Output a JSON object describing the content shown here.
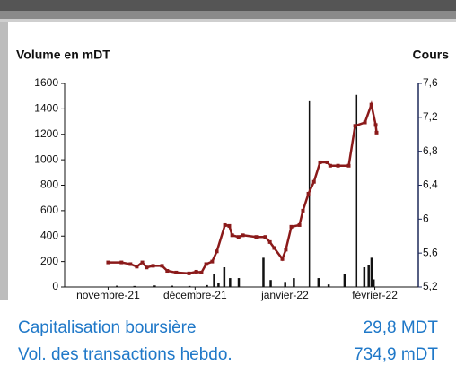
{
  "chart_data": {
    "type": "combo",
    "y_label": "Volume en mDT",
    "y2_label": "Cours",
    "xlim": [
      -15,
      107
    ],
    "xticks": [
      {
        "value": 0,
        "label": "novembre-21"
      },
      {
        "value": 30,
        "label": "décembre-21"
      },
      {
        "value": 61,
        "label": "janvier-22"
      },
      {
        "value": 92,
        "label": "février-22"
      }
    ],
    "ylim": [
      0,
      1600
    ],
    "yticks": [
      0,
      200,
      400,
      600,
      800,
      1000,
      1200,
      1400,
      1600
    ],
    "y2lim": [
      5.2,
      7.6
    ],
    "y2ticks": [
      {
        "value": 5.2,
        "label": "5,2"
      },
      {
        "value": 5.6,
        "label": "5,6"
      },
      6,
      {
        "value": 6.4,
        "label": "6,4"
      },
      {
        "value": 6.8,
        "label": "6,8"
      },
      {
        "value": 7.2,
        "label": "7,2"
      },
      {
        "value": 7.6,
        "label": "7,6"
      }
    ],
    "series": [
      {
        "type": "bar",
        "axis": "y",
        "color": "#111111",
        "x": [
          3,
          9,
          16,
          22,
          28,
          34,
          36.5,
          38,
          40,
          42,
          45,
          53.5,
          56,
          61,
          64,
          69.5,
          72.5,
          76,
          81.5,
          85.8,
          88.3,
          89.8,
          90.8,
          91.5
        ],
        "values": [
          10,
          8,
          12,
          10,
          8,
          15,
          105,
          30,
          155,
          70,
          70,
          230,
          55,
          40,
          70,
          1460,
          70,
          20,
          100,
          1510,
          155,
          170,
          230,
          60
        ]
      },
      {
        "type": "line",
        "axis": "y2",
        "color": "#8b1a1a",
        "x": [
          0,
          4.6,
          7.7,
          9.9,
          11.8,
          13.3,
          15.5,
          18.6,
          20.4,
          23.5,
          27.9,
          30.4,
          32.2,
          33.8,
          35.9,
          37.5,
          40.3,
          41.8,
          42.8,
          45,
          46.5,
          51.1,
          54.2,
          55.8,
          57.3,
          60.1,
          61.3,
          63.2,
          66,
          67.2,
          69.1,
          71,
          73.1,
          75.6,
          76.6,
          79.3,
          83,
          85.2,
          88.6,
          90.8,
          92.3,
          92.6
        ],
        "values": [
          5.49,
          5.49,
          5.47,
          5.44,
          5.49,
          5.43,
          5.45,
          5.45,
          5.39,
          5.37,
          5.36,
          5.38,
          5.37,
          5.47,
          5.5,
          5.62,
          5.93,
          5.92,
          5.81,
          5.79,
          5.81,
          5.79,
          5.79,
          5.73,
          5.66,
          5.53,
          5.64,
          5.91,
          5.93,
          6.1,
          6.3,
          6.44,
          6.67,
          6.67,
          6.63,
          6.63,
          6.63,
          7.1,
          7.14,
          7.35,
          7.11,
          7.02
        ]
      }
    ]
  },
  "footer": [
    {
      "label": "Capitalisation boursière",
      "value": "29,8 MDT"
    },
    {
      "label": "Vol. des transactions hebdo.",
      "value": "734,9 mDT"
    }
  ]
}
